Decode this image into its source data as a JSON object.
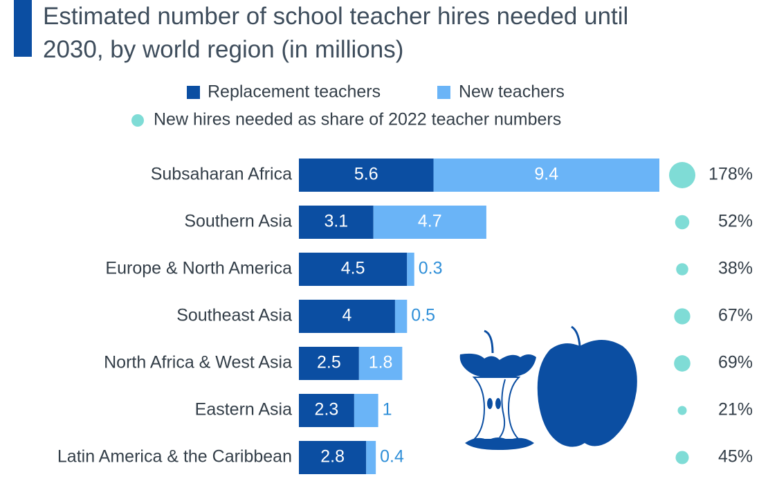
{
  "chart_data": {
    "type": "bar",
    "orientation": "horizontal",
    "stacked": true,
    "title": "Estimated number of school teacher hires needed until 2030, by world region (in millions)",
    "categories": [
      "Subsaharan Africa",
      "Southern Asia",
      "Europe & North America",
      "Southeast Asia",
      "North Africa & West Asia",
      "Eastern Asia",
      "Latin America & the Caribbean"
    ],
    "series": [
      {
        "name": "Replacement teachers",
        "color": "#0b4ea2",
        "values": [
          5.6,
          3.1,
          4.5,
          4.0,
          2.5,
          2.3,
          2.8
        ]
      },
      {
        "name": "New teachers",
        "color": "#6ab4f7",
        "values": [
          9.4,
          4.7,
          0.3,
          0.5,
          1.8,
          1.0,
          0.4
        ]
      },
      {
        "name": "New hires needed as share of 2022 teacher numbers",
        "type": "bubble",
        "color": "#7fdcd6",
        "values": [
          178,
          52,
          38,
          67,
          69,
          21,
          45
        ],
        "value_labels": [
          "178%",
          "52%",
          "38%",
          "67%",
          "69%",
          "21%",
          "45%"
        ]
      }
    ]
  }
}
